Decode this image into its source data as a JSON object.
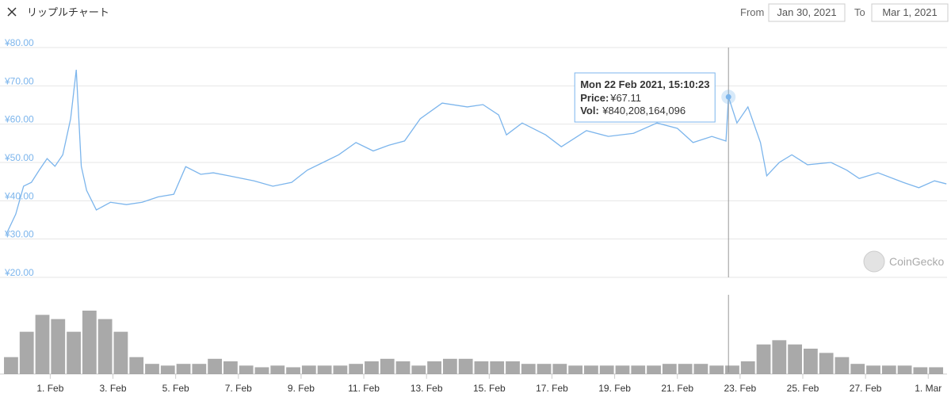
{
  "header": {
    "title": "リップルチャート",
    "from_label": "From",
    "from_date": "Jan 30, 2021",
    "to_label": "To",
    "to_date": "Mar 1, 2021"
  },
  "watermark": "CoinGecko",
  "chart_data": [
    {
      "type": "line",
      "name": "price",
      "color": "#7cb5ec",
      "grid": true,
      "xlim": [
        -0.4,
        29.6
      ],
      "ylim": [
        20,
        80
      ],
      "yticks": [
        {
          "value": 80,
          "label": "¥80.00"
        },
        {
          "value": 70,
          "label": "¥70.00"
        },
        {
          "value": 60,
          "label": "¥60.00"
        },
        {
          "value": 50,
          "label": "¥50.00"
        },
        {
          "value": 40,
          "label": "¥40.00"
        },
        {
          "value": 30,
          "label": "¥30.00"
        },
        {
          "value": 20,
          "label": "¥20.00"
        }
      ],
      "x": [
        -0.4,
        -0.1,
        0.15,
        0.4,
        0.65,
        0.9,
        1.15,
        1.4,
        1.65,
        1.83,
        1.99,
        2.16,
        2.47,
        2.92,
        3.43,
        3.93,
        4.44,
        4.94,
        5.32,
        5.8,
        6.2,
        6.7,
        7.5,
        8.1,
        8.7,
        9.2,
        9.7,
        10.2,
        10.75,
        11.3,
        11.8,
        12.3,
        12.8,
        13.5,
        14.3,
        14.8,
        15.3,
        15.55,
        16.05,
        16.8,
        17.3,
        18.1,
        18.8,
        19.6,
        20.35,
        21.0,
        21.5,
        22.1,
        22.55,
        22.63,
        22.9,
        23.25,
        23.65,
        23.85,
        24.25,
        24.65,
        25.15,
        25.9,
        26.4,
        26.8,
        27.4,
        28.2,
        28.7,
        29.2,
        29.58
      ],
      "values": [
        31.3,
        36.5,
        43.8,
        44.8,
        48,
        51,
        49,
        52,
        61.4,
        74.2,
        49,
        42.7,
        37.6,
        39.6,
        39,
        39.6,
        41,
        41.7,
        48.9,
        46.9,
        47.3,
        46.5,
        45.2,
        43.8,
        44.8,
        48,
        50,
        52,
        55.2,
        53,
        54.5,
        55.6,
        61.4,
        65.5,
        64.5,
        65.1,
        62.4,
        57.2,
        60.3,
        57.2,
        54.1,
        58.3,
        56.8,
        57.6,
        60.3,
        58.9,
        55.2,
        56.8,
        55.6,
        67.11,
        60.3,
        64.5,
        55.2,
        46.5,
        50,
        52,
        49.4,
        50,
        48,
        45.8,
        47.3,
        44.8,
        43.4,
        45.2,
        44.4
      ],
      "tooltip": {
        "title": "Mon 22 Feb 2021, 15:10:23",
        "price_label": "Price:",
        "price": {
          "value": 67.11,
          "label": "¥67.11"
        },
        "vol_label": "Vol:",
        "vol": {
          "value": 840208164096,
          "label": "¥840,208,164,096"
        }
      }
    },
    {
      "type": "bar",
      "name": "volume",
      "color": "#8c8c8c",
      "xlim": [
        -0.4,
        29.6
      ],
      "xticks": [
        {
          "value": 1,
          "label": "1. Feb"
        },
        {
          "value": 3,
          "label": "3. Feb"
        },
        {
          "value": 5,
          "label": "5. Feb"
        },
        {
          "value": 7,
          "label": "7. Feb"
        },
        {
          "value": 9,
          "label": "9. Feb"
        },
        {
          "value": 11,
          "label": "11. Feb"
        },
        {
          "value": 13,
          "label": "13. Feb"
        },
        {
          "value": 15,
          "label": "15. Feb"
        },
        {
          "value": 17,
          "label": "17. Feb"
        },
        {
          "value": 19,
          "label": "19. Feb"
        },
        {
          "value": 21,
          "label": "21. Feb"
        },
        {
          "value": 23,
          "label": "23. Feb"
        },
        {
          "value": 25,
          "label": "25. Feb"
        },
        {
          "value": 27,
          "label": "27. Feb"
        },
        {
          "value": 29,
          "label": "1. Mar"
        }
      ],
      "x": [
        -0.25,
        0.25,
        0.75,
        1.25,
        1.75,
        2.25,
        2.75,
        3.25,
        3.75,
        4.25,
        4.75,
        5.25,
        5.75,
        6.25,
        6.75,
        7.25,
        7.75,
        8.25,
        8.75,
        9.25,
        9.75,
        10.25,
        10.75,
        11.25,
        11.75,
        12.25,
        12.75,
        13.25,
        13.75,
        14.25,
        14.75,
        15.25,
        15.75,
        16.25,
        16.75,
        17.25,
        17.75,
        18.25,
        18.75,
        19.25,
        19.75,
        20.25,
        20.75,
        21.25,
        21.75,
        22.25,
        22.75,
        23.25,
        23.75,
        24.25,
        24.75,
        25.25,
        25.75,
        26.25,
        26.75,
        27.25,
        27.75,
        28.25,
        28.75,
        29.25
      ],
      "values": [
        1120000000000.0,
        2800000000000.0,
        3920000000000.0,
        3640000000000.0,
        2800000000000.0,
        4200000000000.0,
        3640000000000.0,
        2800000000000.0,
        1120000000000.0,
        672000000000.0,
        560000000000.0,
        672000000000.0,
        672000000000.0,
        1008000000000.0,
        840000000000.0,
        560000000000.0,
        448000000000.0,
        560000000000.0,
        448000000000.0,
        560000000000.0,
        560000000000.0,
        560000000000.0,
        672000000000.0,
        840000000000.0,
        1008000000000.0,
        840000000000.0,
        560000000000.0,
        840000000000.0,
        1008000000000.0,
        1008000000000.0,
        840000000000.0,
        840000000000.0,
        840000000000.0,
        672000000000.0,
        672000000000.0,
        672000000000.0,
        560000000000.0,
        560000000000.0,
        560000000000.0,
        560000000000.0,
        560000000000.0,
        560000000000.0,
        672000000000.0,
        672000000000.0,
        672000000000.0,
        560000000000.0,
        560000000000.0,
        840000000000.0,
        1960000000000.0,
        2240000000000.0,
        1960000000000.0,
        1680000000000.0,
        1400000000000.0,
        1120000000000.0,
        672000000000.0,
        560000000000.0,
        560000000000.0,
        560000000000.0,
        448000000000.0,
        448000000000.0
      ]
    }
  ]
}
